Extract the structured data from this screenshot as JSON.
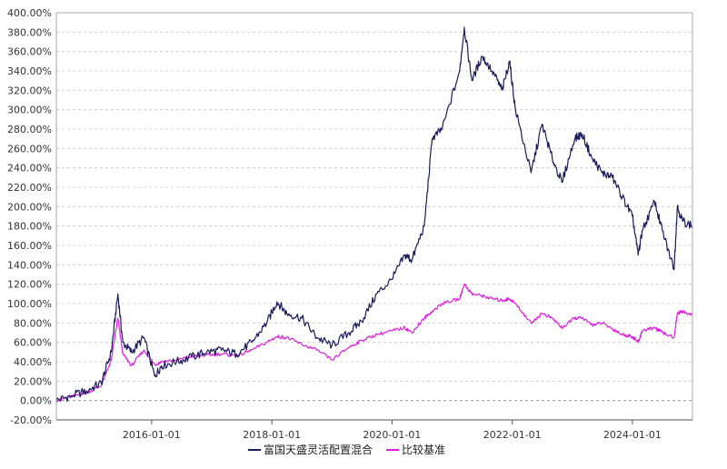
{
  "chart_data": {
    "type": "line",
    "title": "",
    "xlabel": "",
    "ylabel": "",
    "y_unit": "%",
    "ylim": [
      -20,
      400
    ],
    "y_ticks": [
      -20,
      0,
      20,
      40,
      60,
      80,
      100,
      120,
      140,
      160,
      180,
      200,
      220,
      240,
      260,
      280,
      300,
      320,
      340,
      360,
      380,
      400
    ],
    "y_tick_labels": [
      "-20.00%",
      "0.00%",
      "20.00%",
      "40.00%",
      "60.00%",
      "80.00%",
      "100.00%",
      "120.00%",
      "140.00%",
      "160.00%",
      "180.00%",
      "200.00%",
      "220.00%",
      "240.00%",
      "260.00%",
      "280.00%",
      "300.00%",
      "320.00%",
      "340.00%",
      "360.00%",
      "380.00%",
      "400.00%"
    ],
    "xlim": [
      "2014-06-01",
      "2024-12-31"
    ],
    "x_ticks": [
      "2016-01-01",
      "2018-01-01",
      "2020-01-01",
      "2022-01-01",
      "2024-01-01"
    ],
    "x_tick_labels": [
      "2016-01-01",
      "2018-01-01",
      "2020-01-01",
      "2022-01-01",
      "2024-01-01"
    ],
    "grid": true,
    "legend_position": "bottom",
    "x": [
      "2014-06-01",
      "2014-09-01",
      "2014-12-01",
      "2015-03-01",
      "2015-05-01",
      "2015-06-10",
      "2015-07-10",
      "2015-09-01",
      "2015-11-15",
      "2016-01-20",
      "2016-03-01",
      "2016-06-01",
      "2016-09-01",
      "2016-12-01",
      "2017-03-01",
      "2017-06-01",
      "2017-09-01",
      "2017-12-01",
      "2018-02-01",
      "2018-04-01",
      "2018-07-01",
      "2018-10-01",
      "2019-01-01",
      "2019-04-15",
      "2019-07-01",
      "2019-10-01",
      "2020-01-01",
      "2020-03-20",
      "2020-05-01",
      "2020-07-15",
      "2020-09-01",
      "2020-11-01",
      "2021-02-15",
      "2021-03-15",
      "2021-05-01",
      "2021-07-01",
      "2021-09-01",
      "2021-11-01",
      "2021-12-15",
      "2022-01-20",
      "2022-04-25",
      "2022-07-01",
      "2022-09-01",
      "2022-10-30",
      "2023-01-15",
      "2023-03-01",
      "2023-05-01",
      "2023-07-01",
      "2023-09-01",
      "2023-11-01",
      "2024-01-01",
      "2024-02-05",
      "2024-03-01",
      "2024-05-15",
      "2024-07-01",
      "2024-09-10",
      "2024-09-30",
      "2024-11-01",
      "2024-12-31"
    ],
    "series": [
      {
        "name": "富国天盛灵活配置混合",
        "color": "#1a1a5e",
        "values": [
          0,
          5,
          10,
          18,
          50,
          110,
          60,
          50,
          65,
          25,
          36,
          40,
          45,
          50,
          52,
          48,
          60,
          80,
          102,
          90,
          85,
          65,
          57,
          70,
          82,
          110,
          125,
          150,
          145,
          180,
          270,
          280,
          340,
          385,
          330,
          355,
          340,
          320,
          350,
          300,
          235,
          285,
          250,
          225,
          270,
          275,
          250,
          235,
          230,
          210,
          190,
          150,
          175,
          205,
          175,
          135,
          200,
          185,
          180
        ]
      },
      {
        "name": "比较基准",
        "color": "#e020e0",
        "values": [
          0,
          4,
          8,
          15,
          42,
          85,
          48,
          36,
          52,
          37,
          40,
          42,
          45,
          47,
          48,
          46,
          52,
          60,
          66,
          65,
          58,
          52,
          42,
          55,
          62,
          68,
          72,
          75,
          70,
          85,
          92,
          100,
          105,
          120,
          110,
          108,
          105,
          103,
          105,
          100,
          80,
          90,
          85,
          75,
          85,
          85,
          78,
          80,
          74,
          68,
          66,
          60,
          72,
          75,
          70,
          65,
          90,
          92,
          88
        ]
      }
    ]
  }
}
